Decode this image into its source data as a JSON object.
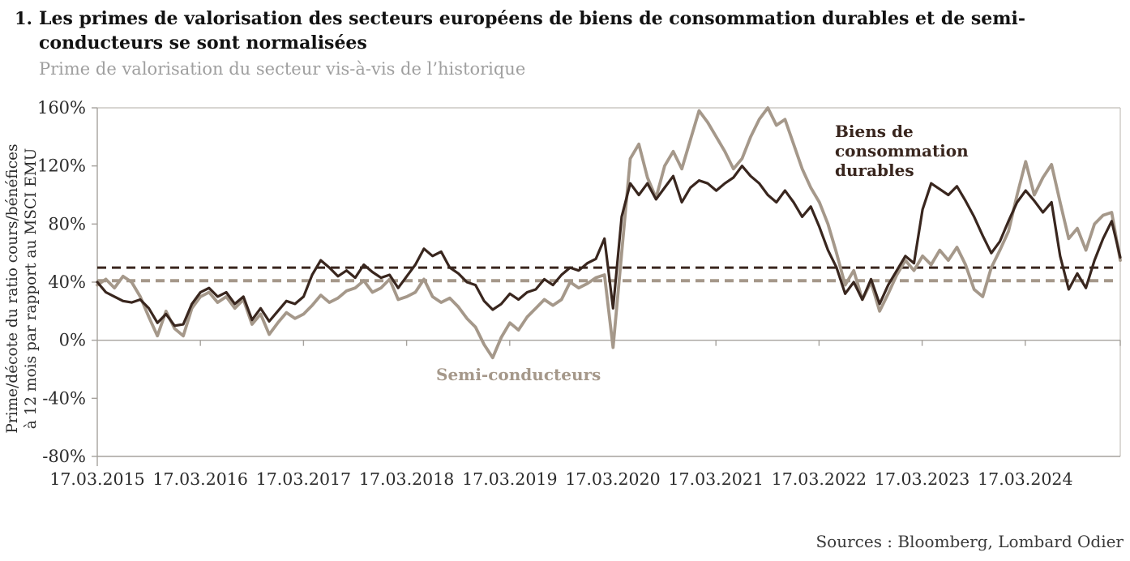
{
  "header": {
    "number": "1.",
    "title": "Les primes de valorisation des secteurs européens de biens de consommation durables et de semi-conducteurs se sont normalisées",
    "subtitle": "Prime de valorisation du secteur vis-à-vis de l’historique"
  },
  "footer": {
    "sources": "Sources : Bloomberg, Lombard Odier"
  },
  "colors": {
    "durables": "#39261e",
    "semiconductors": "#a5988a",
    "axis": "#a6a29d",
    "frame_light": "#ccc9c4",
    "tick_text": "#2b2b2b"
  },
  "chart_data": {
    "type": "line",
    "title": "Prime de valorisation du secteur vis-à-vis de l’historique",
    "ylabel_line1": "Prime/décote du ratio cours/bénéfices",
    "ylabel_line2": "à 12 mois par rapport au MSCI EMU",
    "ylim": [
      -80,
      160
    ],
    "ytick_labels": [
      "160%",
      "120%",
      "80%",
      "40%",
      "0%",
      "-40%",
      "-80%"
    ],
    "ytick_values": [
      160,
      120,
      80,
      40,
      0,
      -40,
      -80
    ],
    "xtick_labels": [
      "17.03.2015",
      "17.03.2016",
      "17.03.2017",
      "17.03.2018",
      "17.03.2019",
      "17.03.2020",
      "17.03.2021",
      "17.03.2022",
      "17.03.2023",
      "17.03.2024"
    ],
    "x_unit": "mois depuis 17.03.2015, un point par mois",
    "grid": "frame + ligne zéro",
    "legend_position": "annotations sur le graphique",
    "series": [
      {
        "name": "Semi-conducteurs",
        "color": "#a5988a",
        "stroke_width": 3.8,
        "values": [
          38,
          42,
          36,
          44,
          40,
          30,
          16,
          3,
          20,
          8,
          3,
          22,
          30,
          33,
          26,
          30,
          22,
          28,
          11,
          18,
          4,
          12,
          19,
          15,
          18,
          24,
          31,
          26,
          29,
          34,
          36,
          41,
          33,
          36,
          42,
          28,
          30,
          33,
          42,
          30,
          26,
          29,
          23,
          15,
          9,
          -3,
          -12,
          2,
          12,
          7,
          16,
          22,
          28,
          24,
          28,
          40,
          36,
          39,
          43,
          45,
          -5,
          60,
          125,
          135,
          112,
          98,
          120,
          130,
          118,
          138,
          158,
          150,
          140,
          130,
          118,
          125,
          140,
          152,
          160,
          148,
          152,
          135,
          118,
          105,
          95,
          80,
          60,
          38,
          48,
          28,
          40,
          20,
          32,
          45,
          55,
          48,
          58,
          52,
          62,
          55,
          64,
          52,
          35,
          30,
          50,
          62,
          75,
          100,
          123,
          100,
          112,
          121,
          95,
          70,
          77,
          62,
          80,
          86,
          88,
          55
        ]
      },
      {
        "name": "Biens de consommation durables",
        "color": "#39261e",
        "stroke_width": 3.2,
        "values": [
          40,
          33,
          30,
          27,
          26,
          28,
          22,
          12,
          18,
          10,
          11,
          25,
          33,
          36,
          30,
          33,
          25,
          30,
          14,
          22,
          13,
          20,
          27,
          25,
          30,
          45,
          55,
          50,
          44,
          48,
          43,
          52,
          47,
          43,
          45,
          36,
          44,
          52,
          63,
          58,
          61,
          50,
          46,
          40,
          38,
          27,
          21,
          25,
          32,
          28,
          33,
          35,
          42,
          38,
          45,
          50,
          48,
          53,
          56,
          70,
          22,
          85,
          108,
          100,
          108,
          97,
          105,
          113,
          95,
          105,
          110,
          108,
          103,
          108,
          112,
          120,
          113,
          108,
          100,
          95,
          103,
          95,
          85,
          92,
          78,
          62,
          50,
          32,
          40,
          28,
          42,
          25,
          38,
          48,
          58,
          53,
          90,
          108,
          104,
          100,
          106,
          96,
          85,
          72,
          60,
          68,
          82,
          95,
          103,
          96,
          88,
          95,
          58,
          35,
          46,
          36,
          55,
          70,
          82,
          57
        ]
      }
    ],
    "reference_lines": [
      {
        "value": 50,
        "color": "#39261e",
        "style": "dashed",
        "stroke_width": 3
      },
      {
        "value": 41,
        "color": "#a5988a",
        "style": "dashed",
        "stroke_width": 4
      }
    ]
  }
}
